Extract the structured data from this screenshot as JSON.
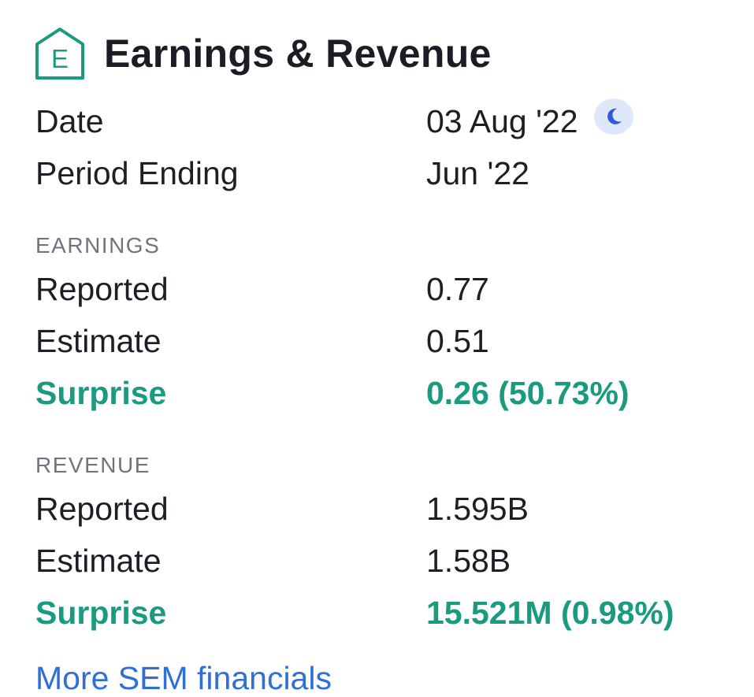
{
  "header": {
    "title": "Earnings & Revenue",
    "icon": "earnings-house-icon",
    "icon_letter": "E",
    "accent_color": "#1a9a7e"
  },
  "summary": {
    "date_label": "Date",
    "date_value": "03 Aug '22",
    "date_icon": "moon-icon",
    "period_label": "Period Ending",
    "period_value": "Jun '22"
  },
  "earnings": {
    "heading": "EARNINGS",
    "reported_label": "Reported",
    "reported_value": "0.77",
    "estimate_label": "Estimate",
    "estimate_value": "0.51",
    "surprise_label": "Surprise",
    "surprise_value": "0.26 (50.73%)"
  },
  "revenue": {
    "heading": "REVENUE",
    "reported_label": "Reported",
    "reported_value": "1.595B",
    "estimate_label": "Estimate",
    "estimate_value": "1.58B",
    "surprise_label": "Surprise",
    "surprise_value": "15.521M (0.98%)"
  },
  "footer": {
    "link_label": "More SEM financials"
  }
}
